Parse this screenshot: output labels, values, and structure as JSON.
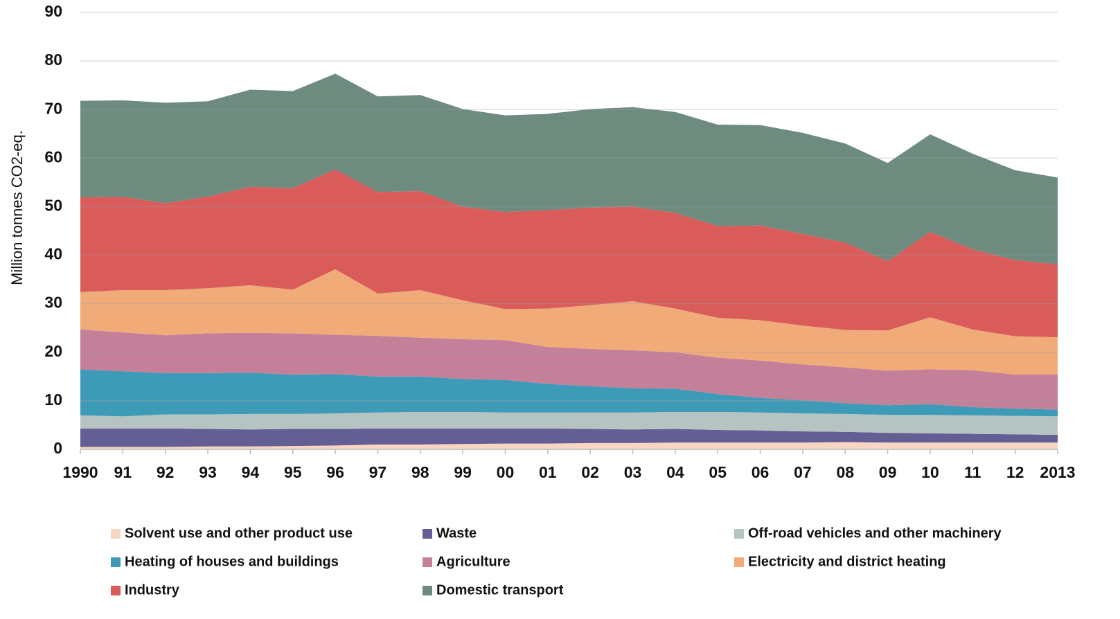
{
  "chart_data": {
    "type": "stacked_area",
    "y_label": "Million tonnes CO2-eq.",
    "categories": [
      "1990",
      "91",
      "92",
      "93",
      "94",
      "95",
      "96",
      "97",
      "98",
      "99",
      "00",
      "01",
      "02",
      "03",
      "04",
      "05",
      "06",
      "07",
      "08",
      "09",
      "10",
      "11",
      "12",
      "2013"
    ],
    "ylim": [
      0,
      90
    ],
    "yticks": [
      0,
      10,
      20,
      30,
      40,
      50,
      60,
      70,
      80,
      90
    ],
    "grid": true,
    "legend": "bottom",
    "series": [
      {
        "name": "Solvent use and other product use",
        "color": "#f9d5c3",
        "values": [
          0.5,
          0.5,
          0.5,
          0.6,
          0.6,
          0.7,
          0.8,
          1.0,
          1.0,
          1.1,
          1.2,
          1.2,
          1.3,
          1.3,
          1.4,
          1.4,
          1.4,
          1.4,
          1.5,
          1.4,
          1.4,
          1.4,
          1.4,
          1.4
        ]
      },
      {
        "name": "Waste",
        "color": "#635e93",
        "values": [
          3.8,
          3.8,
          3.8,
          3.6,
          3.5,
          3.5,
          3.4,
          3.3,
          3.3,
          3.2,
          3.1,
          3.1,
          2.9,
          2.8,
          2.8,
          2.6,
          2.5,
          2.3,
          2.1,
          2.0,
          1.9,
          1.8,
          1.7,
          1.6
        ]
      },
      {
        "name": "Off-road vehicles and other machinery",
        "color": "#b5c4c0",
        "values": [
          2.7,
          2.5,
          2.9,
          3.0,
          3.2,
          3.1,
          3.2,
          3.3,
          3.4,
          3.4,
          3.3,
          3.3,
          3.4,
          3.5,
          3.5,
          3.7,
          3.7,
          3.7,
          3.7,
          3.7,
          3.8,
          3.8,
          3.8,
          3.8
        ]
      },
      {
        "name": "Heating of houses and buildings",
        "color": "#3e9bb8",
        "values": [
          9.5,
          9.3,
          8.5,
          8.5,
          8.5,
          8.1,
          8.1,
          7.4,
          7.3,
          6.8,
          6.7,
          5.9,
          5.4,
          5.0,
          4.8,
          3.7,
          3.0,
          2.7,
          2.2,
          2.0,
          2.2,
          1.7,
          1.5,
          1.4
        ]
      },
      {
        "name": "Agriculture",
        "color": "#c47f99",
        "values": [
          8.2,
          8.0,
          7.8,
          8.2,
          8.2,
          8.5,
          8.1,
          8.4,
          8.0,
          8.2,
          8.2,
          7.6,
          7.7,
          7.8,
          7.5,
          7.5,
          7.7,
          7.4,
          7.4,
          7.1,
          7.2,
          7.6,
          7.0,
          7.2
        ]
      },
      {
        "name": "Electricity and district heating",
        "color": "#f0ab78",
        "values": [
          7.7,
          8.7,
          9.3,
          9.3,
          9.8,
          9.0,
          13.5,
          8.7,
          9.8,
          8.0,
          6.4,
          7.9,
          9.0,
          10.1,
          9.0,
          8.2,
          8.3,
          8.0,
          7.7,
          8.3,
          10.7,
          8.4,
          7.9,
          7.7
        ]
      },
      {
        "name": "Industry",
        "color": "#d95b5a",
        "values": [
          19.5,
          19.2,
          17.9,
          18.9,
          20.3,
          20.9,
          20.6,
          20.9,
          20.4,
          19.3,
          20.0,
          20.3,
          20.1,
          19.5,
          19.7,
          18.9,
          19.5,
          18.9,
          18.0,
          14.3,
          17.6,
          16.5,
          15.7,
          15.0
        ]
      },
      {
        "name": "Domestic transport",
        "color": "#6e8b80",
        "values": [
          19.9,
          19.9,
          20.7,
          19.6,
          20.0,
          20.0,
          19.7,
          19.7,
          19.8,
          20.1,
          19.9,
          19.8,
          20.3,
          20.5,
          20.8,
          20.9,
          20.7,
          20.8,
          20.4,
          20.2,
          20.1,
          19.7,
          18.5,
          17.9
        ]
      }
    ]
  }
}
